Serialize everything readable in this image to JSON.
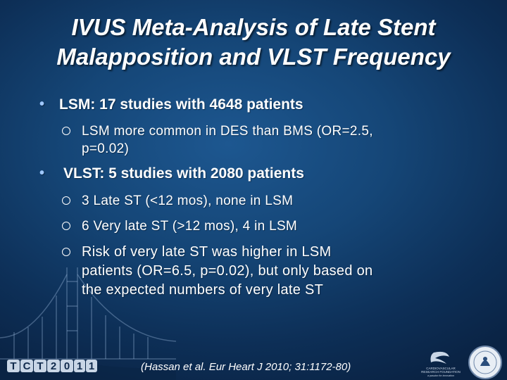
{
  "slide": {
    "title_line1": "IVUS Meta-Analysis of Late Stent",
    "title_line2": "Malapposition and VLST Frequency",
    "bullets": [
      {
        "marker": "•",
        "text": "LSM: 17 studies with 4648 patients"
      },
      {
        "marker": "•",
        "text": "VLST: 5 studies with 2080 patients"
      }
    ],
    "sub_bullets": [
      {
        "line1": "LSM more common in DES than BMS (OR=2.5,",
        "line2": "p=0.02)"
      },
      {
        "line1": "3 Late ST (<12 mos), none in LSM"
      },
      {
        "line1": "6 Very late ST (>12 mos), 4 in LSM"
      },
      {
        "line1": "Risk of very late ST was higher in LSM",
        "line2": "patients (OR=6.5, p=0.02), but only based on",
        "line3": "the expected numbers of very late ST"
      }
    ],
    "citation": "(Hassan et al. Eur Heart J 2010; 31:1172-80)"
  },
  "footer": {
    "tct_logo_text": "TCT2011",
    "crf_logo_text": "CARDIOVASCULAR RESEARCH FOUNDATION",
    "crf_tagline": "a passion for innovation"
  },
  "colors": {
    "background": "#154677",
    "text": "#ffffff",
    "bullet_accent": "#9fc8ff"
  }
}
